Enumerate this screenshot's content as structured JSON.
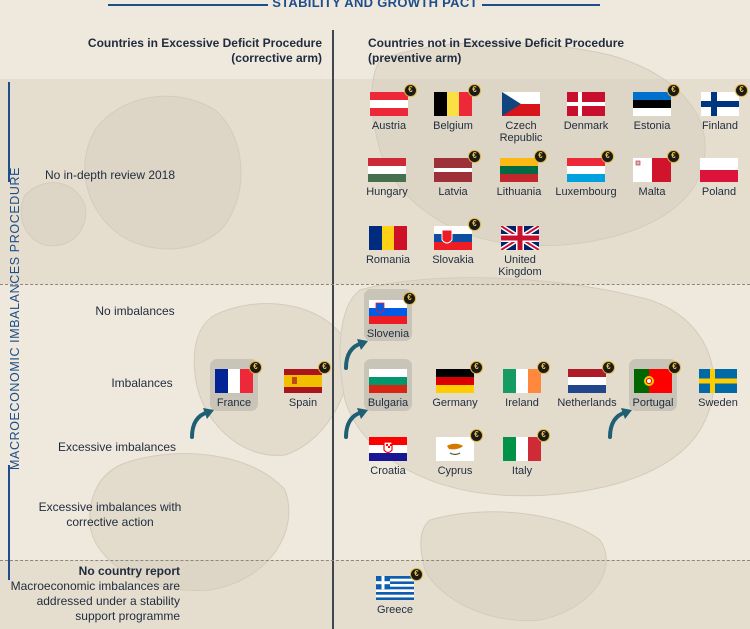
{
  "header": {
    "pact_title": "STABILITY AND GROWTH PACT",
    "col_corrective": "Countries in Excessive Deficit Procedure\n(corrective arm)",
    "col_preventive": "Countries not in Excessive Deficit Procedure\n(preventive arm)"
  },
  "side_label": "MACROECONOMIC IMBALANCES PROCEDURE",
  "rows": {
    "no_review": "No in-depth review 2018",
    "no_imbalances": "No imbalances",
    "imbalances": "Imbalances",
    "excessive": "Excessive imbalances",
    "excessive_corrective": "Excessive imbalances with\ncorrective action",
    "no_report_title": "No country report",
    "no_report_text": "Macroeconomic imbalances are\naddressed under a stability\nsupport programme"
  },
  "euro_symbol": "€",
  "icons": {
    "euro_badge": "euro-coin-icon",
    "highlight_arrow": "curved-arrow-icon"
  },
  "colors": {
    "accent": "#1d4d8a",
    "arrow": "#1e5f74",
    "highlight": "#c5c1b6"
  },
  "countries": {
    "austria": "Austria",
    "belgium": "Belgium",
    "czech": "Czech\nRepublic",
    "denmark": "Denmark",
    "estonia": "Estonia",
    "finland": "Finland",
    "hungary": "Hungary",
    "latvia": "Latvia",
    "lithuania": "Lithuania",
    "luxembourg": "Luxembourg",
    "malta": "Malta",
    "poland": "Poland",
    "romania": "Romania",
    "slovakia": "Slovakia",
    "uk": "United\nKingdom",
    "slovenia": "Slovenia",
    "france": "France",
    "spain": "Spain",
    "bulgaria": "Bulgaria",
    "germany": "Germany",
    "ireland": "Ireland",
    "netherlands": "Netherlands",
    "portugal": "Portugal",
    "sweden": "Sweden",
    "croatia": "Croatia",
    "cyprus": "Cyprus",
    "italy": "Italy",
    "greece": "Greece"
  }
}
